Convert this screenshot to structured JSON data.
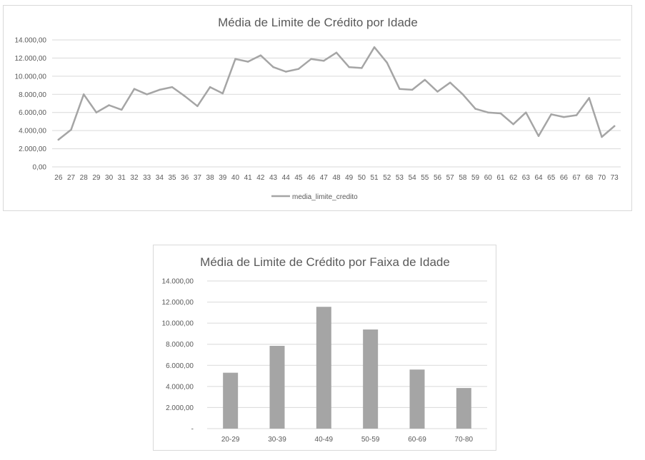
{
  "colors": {
    "series": "#a5a5a5",
    "grid": "#d9d9d9",
    "text": "#595959",
    "border": "#d9d9d9"
  },
  "chart_data": [
    {
      "type": "line",
      "title": "Média de Limite de Crédito por Idade",
      "xlabel": "",
      "ylabel": "",
      "ylim": [
        0,
        14000
      ],
      "ytick_labels": [
        "0,00",
        "2.000,00",
        "4.000,00",
        "6.000,00",
        "8.000,00",
        "10.000,00",
        "12.000,00",
        "14.000,00"
      ],
      "categories": [
        "26",
        "27",
        "28",
        "29",
        "30",
        "31",
        "32",
        "33",
        "34",
        "35",
        "36",
        "37",
        "38",
        "39",
        "40",
        "41",
        "42",
        "43",
        "44",
        "45",
        "46",
        "47",
        "48",
        "49",
        "50",
        "51",
        "52",
        "53",
        "54",
        "55",
        "56",
        "57",
        "58",
        "59",
        "60",
        "61",
        "62",
        "63",
        "64",
        "65",
        "66",
        "67",
        "68",
        "70",
        "73"
      ],
      "series": [
        {
          "name": "media_limite_credito",
          "values": [
            3000,
            4100,
            8000,
            6000,
            6800,
            6300,
            8600,
            8000,
            8500,
            8800,
            7800,
            6700,
            8800,
            8100,
            11900,
            11600,
            12300,
            11000,
            10500,
            10800,
            11900,
            11700,
            12600,
            11000,
            10900,
            13200,
            11500,
            8600,
            8500,
            9600,
            8300,
            9300,
            8000,
            6400,
            6000,
            5900,
            4700,
            6000,
            3400,
            5800,
            5500,
            5700,
            7600,
            3300,
            4500
          ]
        }
      ],
      "legend": "bottom",
      "grid": true
    },
    {
      "type": "bar",
      "title": "Média de Limite de Crédito por Faixa de Idade",
      "xlabel": "",
      "ylabel": "",
      "ylim": [
        0,
        14000
      ],
      "ytick_labels": [
        "-",
        "2.000,00",
        "4.000,00",
        "6.000,00",
        "8.000,00",
        "10.000,00",
        "12.000,00",
        "14.000,00"
      ],
      "categories": [
        "20-29",
        "30-39",
        "40-49",
        "50-59",
        "60-69",
        "70-80"
      ],
      "values": [
        5300,
        7850,
        11550,
        9400,
        5600,
        3850
      ],
      "grid": true
    }
  ]
}
